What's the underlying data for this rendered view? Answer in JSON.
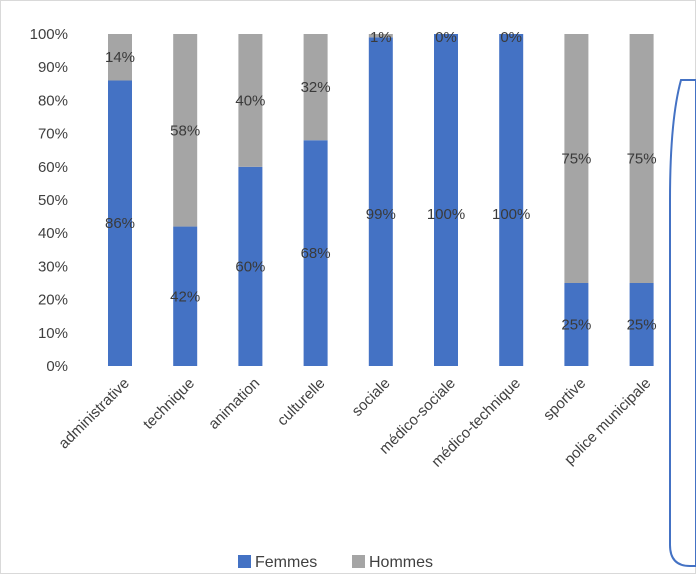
{
  "colors": {
    "femmes": "#4472C4",
    "hommes": "#A5A5A5",
    "callout_border": "#4472C4"
  },
  "chart_data": {
    "type": "bar",
    "stacked": true,
    "percent": true,
    "categories": [
      "administrative",
      "technique",
      "animation",
      "culturelle",
      "sociale",
      "médico-sociale",
      "médico-technique",
      "sportive",
      "police municipale"
    ],
    "series": [
      {
        "name": "Femmes",
        "values": [
          86,
          42,
          60,
          68,
          99,
          100,
          100,
          25,
          25
        ],
        "labels": [
          "86%",
          "42%",
          "60%",
          "68%",
          "99%",
          "100%",
          "100%",
          "25%",
          "25%"
        ]
      },
      {
        "name": "Hommes",
        "values": [
          14,
          58,
          40,
          32,
          1,
          0,
          0,
          75,
          75
        ],
        "labels": [
          "14%",
          "58%",
          "40%",
          "32%",
          "1%",
          "0%",
          "0%",
          "75%",
          "75%"
        ]
      }
    ],
    "yticks": [
      "0%",
      "10%",
      "20%",
      "30%",
      "40%",
      "50%",
      "60%",
      "70%",
      "80%",
      "90%",
      "100%"
    ],
    "ylim": [
      0,
      100
    ],
    "legend_position": "bottom",
    "grid": false
  }
}
